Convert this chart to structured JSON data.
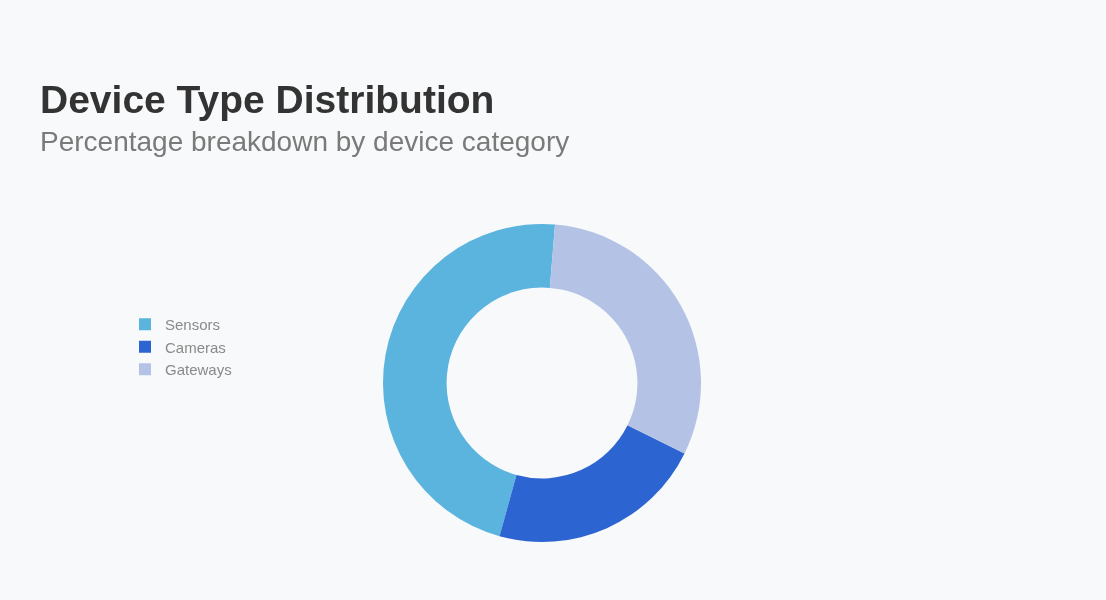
{
  "chart_data": {
    "type": "donut",
    "title": "Device Type Distribution",
    "subtitle": "Percentage breakdown by device category",
    "categories": [
      "Sensors",
      "Cameras",
      "Gateways"
    ],
    "values": [
      47,
      22,
      31
    ],
    "colors": [
      "#5ab4de",
      "#2c64d1",
      "#b4c3e5"
    ],
    "legend": "left"
  }
}
